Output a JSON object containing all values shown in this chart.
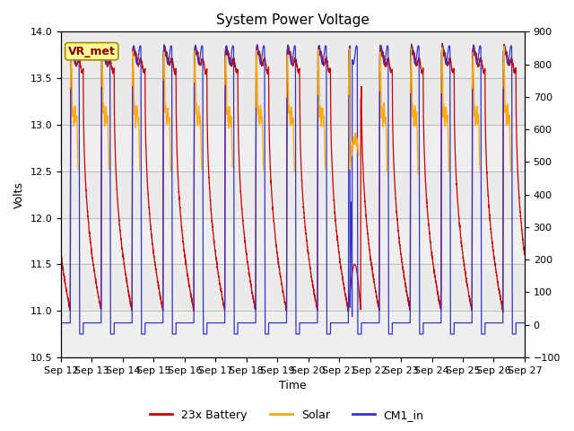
{
  "title": "System Power Voltage",
  "xlabel": "Time",
  "ylabel": "Volts",
  "ylim_left": [
    10.5,
    14.0
  ],
  "ylim_right": [
    -100,
    900
  ],
  "yticks_left": [
    10.5,
    11.0,
    11.5,
    12.0,
    12.5,
    13.0,
    13.5,
    14.0
  ],
  "yticks_right": [
    -100,
    0,
    100,
    200,
    300,
    400,
    500,
    600,
    700,
    800,
    900
  ],
  "xticklabels": [
    "Sep 12",
    "Sep 13",
    "Sep 14",
    "Sep 15",
    "Sep 16",
    "Sep 17",
    "Sep 18",
    "Sep 19",
    "Sep 20",
    "Sep 21",
    "Sep 22",
    "Sep 23",
    "Sep 24",
    "Sep 25",
    "Sep 26",
    "Sep 27"
  ],
  "color_battery": "#cc0000",
  "color_solar": "#ffaa00",
  "color_cm1": "#3333cc",
  "legend_labels": [
    "23x Battery",
    "Solar",
    "CM1_in"
  ],
  "vr_met_label": "VR_met",
  "annotation_box_color": "#ffff99",
  "annotation_text_color": "#8b0000",
  "figsize": [
    6.4,
    4.8
  ],
  "dpi": 100,
  "title_fontsize": 11,
  "axis_label_fontsize": 9,
  "tick_fontsize": 8,
  "legend_fontsize": 9
}
